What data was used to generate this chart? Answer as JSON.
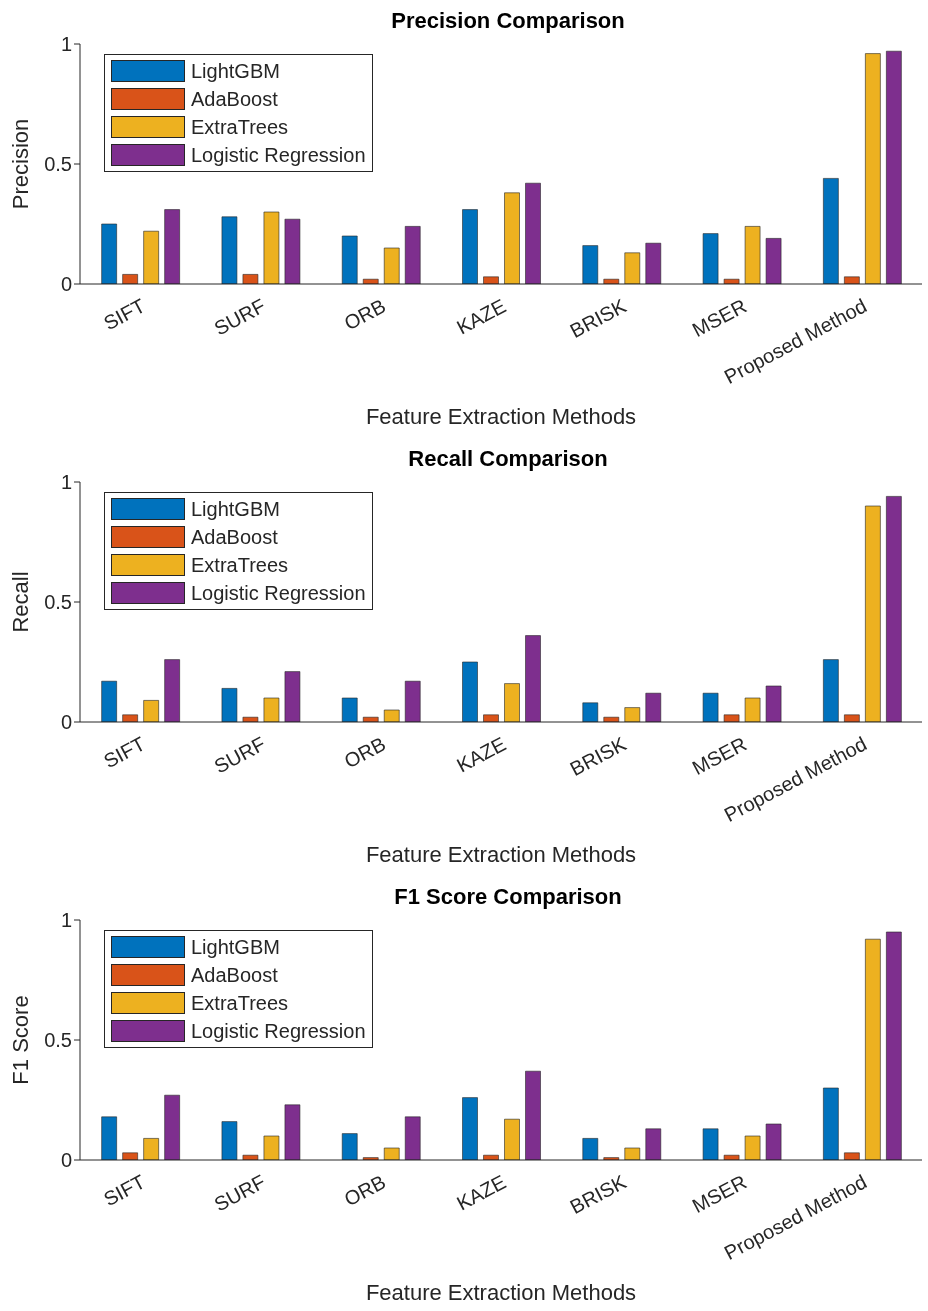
{
  "chart_data": [
    {
      "type": "bar",
      "title": "Precision Comparison",
      "xlabel": "Feature Extraction Methods",
      "ylabel": "Precision",
      "categories": [
        "SIFT",
        "SURF",
        "ORB",
        "KAZE",
        "BRISK",
        "MSER",
        "Proposed Method"
      ],
      "ylim": [
        0,
        1
      ],
      "yticks": [
        0,
        0.5,
        1
      ],
      "grid": false,
      "legend": "top left",
      "series": [
        {
          "name": "LightGBM",
          "color": "#0072bd",
          "values": [
            0.25,
            0.28,
            0.2,
            0.31,
            0.16,
            0.21,
            0.44
          ]
        },
        {
          "name": "AdaBoost",
          "color": "#d95319",
          "values": [
            0.04,
            0.04,
            0.02,
            0.03,
            0.02,
            0.02,
            0.03
          ]
        },
        {
          "name": "ExtraTrees",
          "color": "#edb120",
          "values": [
            0.22,
            0.3,
            0.15,
            0.38,
            0.13,
            0.24,
            0.96
          ]
        },
        {
          "name": "Logistic Regression",
          "color": "#7e2f8e",
          "values": [
            0.31,
            0.27,
            0.24,
            0.42,
            0.17,
            0.19,
            0.97
          ]
        }
      ]
    },
    {
      "type": "bar",
      "title": "Recall Comparison",
      "xlabel": "Feature Extraction Methods",
      "ylabel": "Recall",
      "categories": [
        "SIFT",
        "SURF",
        "ORB",
        "KAZE",
        "BRISK",
        "MSER",
        "Proposed Method"
      ],
      "ylim": [
        0,
        1
      ],
      "yticks": [
        0,
        0.5,
        1
      ],
      "grid": false,
      "legend": "top left",
      "series": [
        {
          "name": "LightGBM",
          "color": "#0072bd",
          "values": [
            0.17,
            0.14,
            0.1,
            0.25,
            0.08,
            0.12,
            0.26
          ]
        },
        {
          "name": "AdaBoost",
          "color": "#d95319",
          "values": [
            0.03,
            0.02,
            0.02,
            0.03,
            0.02,
            0.03,
            0.03
          ]
        },
        {
          "name": "ExtraTrees",
          "color": "#edb120",
          "values": [
            0.09,
            0.1,
            0.05,
            0.16,
            0.06,
            0.1,
            0.9
          ]
        },
        {
          "name": "Logistic Regression",
          "color": "#7e2f8e",
          "values": [
            0.26,
            0.21,
            0.17,
            0.36,
            0.12,
            0.15,
            0.94
          ]
        }
      ]
    },
    {
      "type": "bar",
      "title": "F1 Score Comparison",
      "xlabel": "Feature Extraction Methods",
      "ylabel": "F1 Score",
      "categories": [
        "SIFT",
        "SURF",
        "ORB",
        "KAZE",
        "BRISK",
        "MSER",
        "Proposed Method"
      ],
      "ylim": [
        0,
        1
      ],
      "yticks": [
        0,
        0.5,
        1
      ],
      "grid": false,
      "legend": "top left",
      "series": [
        {
          "name": "LightGBM",
          "color": "#0072bd",
          "values": [
            0.18,
            0.16,
            0.11,
            0.26,
            0.09,
            0.13,
            0.3
          ]
        },
        {
          "name": "AdaBoost",
          "color": "#d95319",
          "values": [
            0.03,
            0.02,
            0.01,
            0.02,
            0.01,
            0.02,
            0.03
          ]
        },
        {
          "name": "ExtraTrees",
          "color": "#edb120",
          "values": [
            0.09,
            0.1,
            0.05,
            0.17,
            0.05,
            0.1,
            0.92
          ]
        },
        {
          "name": "Logistic Regression",
          "color": "#7e2f8e",
          "values": [
            0.27,
            0.23,
            0.18,
            0.37,
            0.13,
            0.15,
            0.95
          ]
        }
      ]
    }
  ]
}
